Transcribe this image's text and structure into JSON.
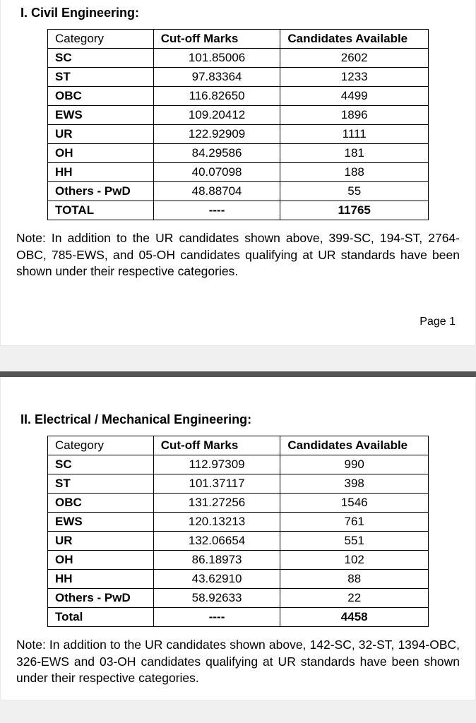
{
  "section1": {
    "heading": "I.  Civil Engineering:",
    "columns": [
      "Category",
      "Cut-off Marks",
      "Candidates Available"
    ],
    "rows": [
      {
        "cat": "SC",
        "cut": "101.85006",
        "cand": "2602"
      },
      {
        "cat": "ST",
        "cut": "97.83364",
        "cand": "1233"
      },
      {
        "cat": "OBC",
        "cut": "116.82650",
        "cand": "4499"
      },
      {
        "cat": "EWS",
        "cut": "109.20412",
        "cand": "1896"
      },
      {
        "cat": "UR",
        "cut": "122.92909",
        "cand": "1111"
      },
      {
        "cat": "OH",
        "cut": "84.29586",
        "cand": "181"
      },
      {
        "cat": "HH",
        "cut": "40.07098",
        "cand": "188"
      },
      {
        "cat": "Others - PwD",
        "cut": "48.88704",
        "cand": "55"
      }
    ],
    "total": {
      "cat": "TOTAL",
      "cut": "----",
      "cand": "11765"
    },
    "note": "Note: In addition to the UR candidates shown above, 399-SC, 194-ST, 2764-OBC, 785-EWS, and 05-OH candidates qualifying at UR standards have been shown under their respective categories.",
    "page_label": "Page 1"
  },
  "section2": {
    "heading": "II. Electrical / Mechanical Engineering:",
    "columns": [
      "Category",
      "Cut-off Marks",
      "Candidates Available"
    ],
    "rows": [
      {
        "cat": "SC",
        "cut": "112.97309",
        "cand": "990"
      },
      {
        "cat": "ST",
        "cut": "101.37117",
        "cand": "398"
      },
      {
        "cat": "OBC",
        "cut": "131.27256",
        "cand": "1546"
      },
      {
        "cat": "EWS",
        "cut": "120.13213",
        "cand": "761"
      },
      {
        "cat": "UR",
        "cut": "132.06654",
        "cand": "551"
      },
      {
        "cat": "OH",
        "cut": "86.18973",
        "cand": "102"
      },
      {
        "cat": "HH",
        "cut": "43.62910",
        "cand": "88"
      },
      {
        "cat": "Others - PwD",
        "cut": "58.92633",
        "cand": "22"
      }
    ],
    "total": {
      "cat": "Total",
      "cut": "----",
      "cand": "4458"
    },
    "note": "Note: In addition to the UR candidates shown above, 142-SC, 32-ST, 1394-OBC, 326-EWS and 03-OH candidates qualifying at UR standards have been shown under their respective categories."
  }
}
